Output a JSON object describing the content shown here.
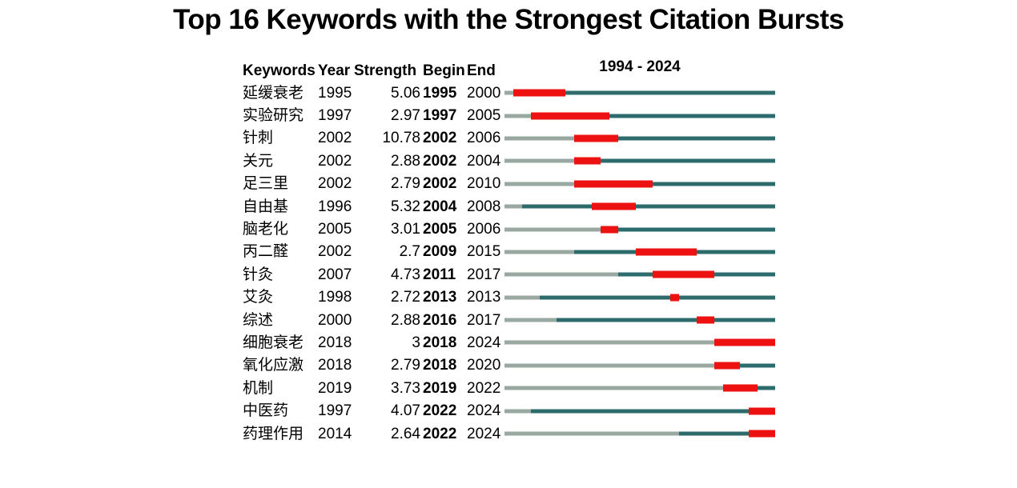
{
  "chart_data": {
    "type": "table",
    "title": "Top 16 Keywords with the Strongest Citation Bursts",
    "columns": [
      "Keywords",
      "Year",
      "Strength",
      "Begin",
      "End"
    ],
    "timeline_header": "1994 - 2024",
    "timeline_range": [
      1994,
      2024
    ],
    "legend": {
      "burst_color_meaning": "citation burst period",
      "active_color_meaning": "years after first appearance",
      "inactive_color_meaning": "years before first appearance"
    },
    "colors": {
      "burst": "#ee1111",
      "active": "#2e6b6c",
      "inactive": "#9aa8a2",
      "text": "#000000",
      "background": "#ffffff"
    },
    "rows": [
      {
        "keyword": "延缓衰老",
        "year": 1995,
        "strength": "5.06",
        "begin": 1995,
        "end": 2000
      },
      {
        "keyword": "实验研究",
        "year": 1997,
        "strength": "2.97",
        "begin": 1997,
        "end": 2005
      },
      {
        "keyword": "针刺",
        "year": 2002,
        "strength": "10.78",
        "begin": 2002,
        "end": 2006
      },
      {
        "keyword": "关元",
        "year": 2002,
        "strength": "2.88",
        "begin": 2002,
        "end": 2004
      },
      {
        "keyword": "足三里",
        "year": 2002,
        "strength": "2.79",
        "begin": 2002,
        "end": 2010
      },
      {
        "keyword": "自由基",
        "year": 1996,
        "strength": "5.32",
        "begin": 2004,
        "end": 2008
      },
      {
        "keyword": "脑老化",
        "year": 2005,
        "strength": "3.01",
        "begin": 2005,
        "end": 2006
      },
      {
        "keyword": "丙二醛",
        "year": 2002,
        "strength": "2.7",
        "begin": 2009,
        "end": 2015
      },
      {
        "keyword": "针灸",
        "year": 2007,
        "strength": "4.73",
        "begin": 2011,
        "end": 2017
      },
      {
        "keyword": "艾灸",
        "year": 1998,
        "strength": "2.72",
        "begin": 2013,
        "end": 2013
      },
      {
        "keyword": "综述",
        "year": 2000,
        "strength": "2.88",
        "begin": 2016,
        "end": 2017
      },
      {
        "keyword": "细胞衰老",
        "year": 2018,
        "strength": "3",
        "begin": 2018,
        "end": 2024
      },
      {
        "keyword": "氧化应激",
        "year": 2018,
        "strength": "2.79",
        "begin": 2018,
        "end": 2020
      },
      {
        "keyword": "机制",
        "year": 2019,
        "strength": "3.73",
        "begin": 2019,
        "end": 2022
      },
      {
        "keyword": "中医药",
        "year": 1997,
        "strength": "4.07",
        "begin": 2022,
        "end": 2024
      },
      {
        "keyword": "药理作用",
        "year": 2014,
        "strength": "2.64",
        "begin": 2022,
        "end": 2024
      }
    ]
  }
}
